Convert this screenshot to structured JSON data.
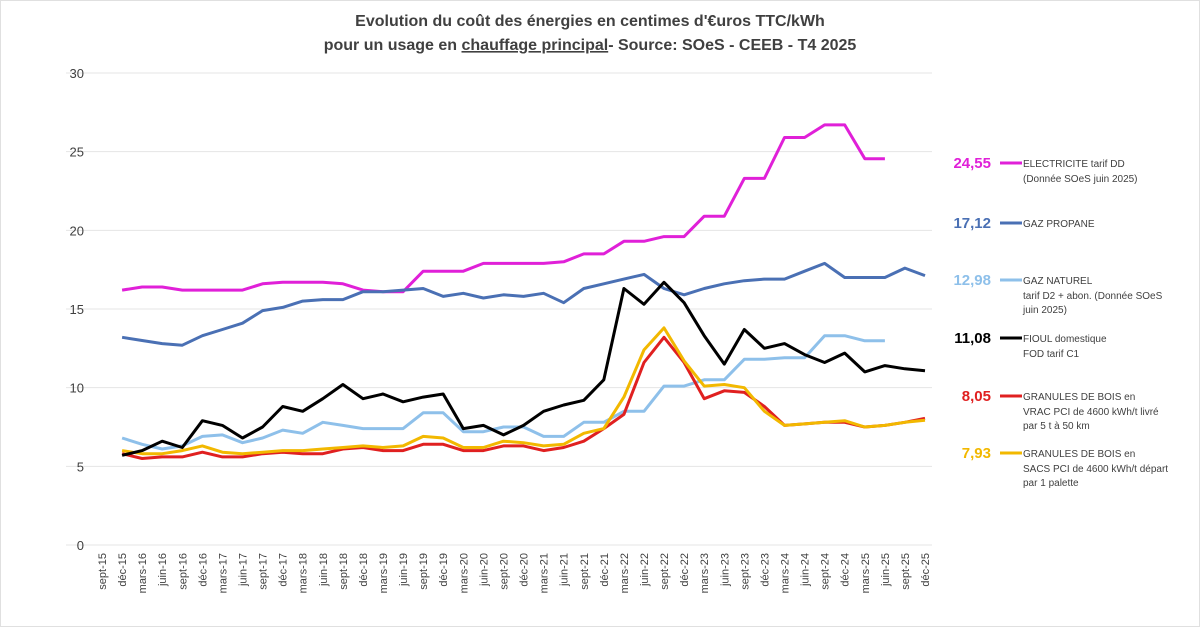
{
  "chart_data": {
    "type": "line",
    "title": [
      "Evolution du coût des énergies en centimes d'€uros TTC/kWh",
      "pour un usage en ",
      "chauffage principal",
      "- Source: SOeS - CEEB - T4 2025"
    ],
    "xlabel": "",
    "ylabel": "",
    "ylim": [
      0,
      30
    ],
    "yticks": [
      "0",
      "5",
      "10",
      "15",
      "20",
      "25",
      "30"
    ],
    "grid": true,
    "legend_position": "right",
    "categories": [
      "sept-15",
      "déc-15",
      "mars-16",
      "juin-16",
      "sept-16",
      "déc-16",
      "mars-17",
      "juin-17",
      "sept-17",
      "déc-17",
      "mars-18",
      "juin-18",
      "sept-18",
      "déc-18",
      "mars-19",
      "juin-19",
      "sept-19",
      "déc-19",
      "mars-20",
      "juin-20",
      "sept-20",
      "déc-20",
      "mars-21",
      "juin-21",
      "sept-21",
      "déc-21",
      "mars-22",
      "juin-22",
      "sept-22",
      "déc-22",
      "mars-23",
      "juin-23",
      "sept-23",
      "déc-23",
      "mars-24",
      "juin-24",
      "sept-24",
      "déc-24",
      "mars-25",
      "juin-25",
      "sept-25",
      "déc-25"
    ],
    "series": [
      {
        "name": "ELECTRICITE tarif DD",
        "note": "(Donnée SOeS juin 2025)",
        "last_value": "24,55",
        "color": "#E020D8",
        "values": [
          null,
          16.2,
          16.4,
          16.4,
          16.2,
          16.2,
          16.2,
          16.2,
          16.6,
          16.7,
          16.7,
          16.7,
          16.6,
          16.2,
          16.1,
          16.1,
          17.4,
          17.4,
          17.4,
          17.9,
          17.9,
          17.9,
          17.9,
          18.0,
          18.5,
          18.5,
          19.3,
          19.3,
          19.6,
          19.6,
          20.9,
          20.9,
          23.3,
          23.3,
          25.9,
          25.9,
          26.7,
          26.7,
          24.55,
          24.55,
          null,
          null
        ]
      },
      {
        "name": "GAZ PROPANE",
        "note": "",
        "last_value": "17,12",
        "color": "#4A70B4",
        "values": [
          null,
          13.2,
          13.0,
          12.8,
          12.7,
          13.3,
          13.7,
          14.1,
          14.9,
          15.1,
          15.5,
          15.6,
          15.6,
          16.1,
          16.1,
          16.2,
          16.3,
          15.8,
          16.0,
          15.7,
          15.9,
          15.8,
          16.0,
          15.4,
          16.3,
          16.6,
          16.9,
          17.2,
          16.3,
          15.9,
          16.3,
          16.6,
          16.8,
          16.9,
          16.9,
          17.4,
          17.9,
          17.0,
          17.0,
          17.0,
          17.6,
          17.12
        ]
      },
      {
        "name": "GAZ NATUREL",
        "note": "tarif D2 + abon. (Donnée SOeS juin 2025)",
        "last_value": "12,98",
        "color": "#8EC0EA",
        "values": [
          null,
          6.8,
          6.4,
          6.1,
          6.3,
          6.9,
          7.0,
          6.5,
          6.8,
          7.3,
          7.1,
          7.8,
          7.6,
          7.4,
          7.4,
          7.4,
          8.4,
          8.4,
          7.2,
          7.2,
          7.5,
          7.5,
          6.9,
          6.9,
          7.8,
          7.8,
          8.5,
          8.5,
          10.1,
          10.1,
          10.5,
          10.5,
          11.8,
          11.8,
          11.9,
          11.9,
          13.3,
          13.3,
          12.98,
          12.98,
          null,
          null
        ]
      },
      {
        "name": "FIOUL domestique",
        "note": "FOD tarif C1",
        "last_value": "11,08",
        "color": "#000000",
        "values": [
          null,
          5.7,
          6.0,
          6.6,
          6.2,
          7.9,
          7.6,
          6.8,
          7.5,
          8.8,
          8.5,
          9.3,
          10.2,
          9.3,
          9.6,
          9.1,
          9.4,
          9.6,
          7.4,
          7.6,
          7.0,
          7.6,
          8.5,
          8.9,
          9.2,
          10.5,
          16.3,
          15.3,
          16.7,
          15.4,
          13.3,
          11.5,
          13.7,
          12.5,
          12.8,
          12.1,
          11.6,
          12.2,
          11.0,
          11.4,
          11.2,
          11.08
        ]
      },
      {
        "name": "GRANULES DE BOIS en",
        "note": "VRAC  PCI de 4600 kWh/t livré par 5 t à 50 km",
        "last_value": "8,05",
        "color": "#E02020",
        "values": [
          null,
          5.8,
          5.5,
          5.6,
          5.6,
          5.9,
          5.6,
          5.6,
          5.8,
          5.9,
          5.8,
          5.8,
          6.1,
          6.2,
          6.0,
          6.0,
          6.4,
          6.4,
          6.0,
          6.0,
          6.3,
          6.3,
          6.0,
          6.2,
          6.6,
          7.4,
          8.3,
          11.6,
          13.2,
          11.6,
          9.3,
          9.8,
          9.7,
          8.8,
          7.6,
          7.7,
          7.8,
          7.8,
          7.5,
          7.6,
          7.8,
          8.05
        ]
      },
      {
        "name": "GRANULES DE BOIS en",
        "note": "SACS PCI de 4600 kWh/t départ par 1 palette",
        "last_value": "7,93",
        "color": "#F2B800",
        "values": [
          null,
          6.0,
          5.8,
          5.8,
          6.0,
          6.3,
          5.9,
          5.8,
          5.9,
          6.0,
          6.0,
          6.1,
          6.2,
          6.3,
          6.2,
          6.3,
          6.9,
          6.8,
          6.2,
          6.2,
          6.6,
          6.5,
          6.3,
          6.4,
          7.1,
          7.4,
          9.4,
          12.4,
          13.8,
          11.7,
          10.1,
          10.2,
          10.0,
          8.5,
          7.6,
          7.7,
          7.8,
          7.9,
          7.5,
          7.6,
          7.8,
          7.93
        ]
      }
    ]
  }
}
